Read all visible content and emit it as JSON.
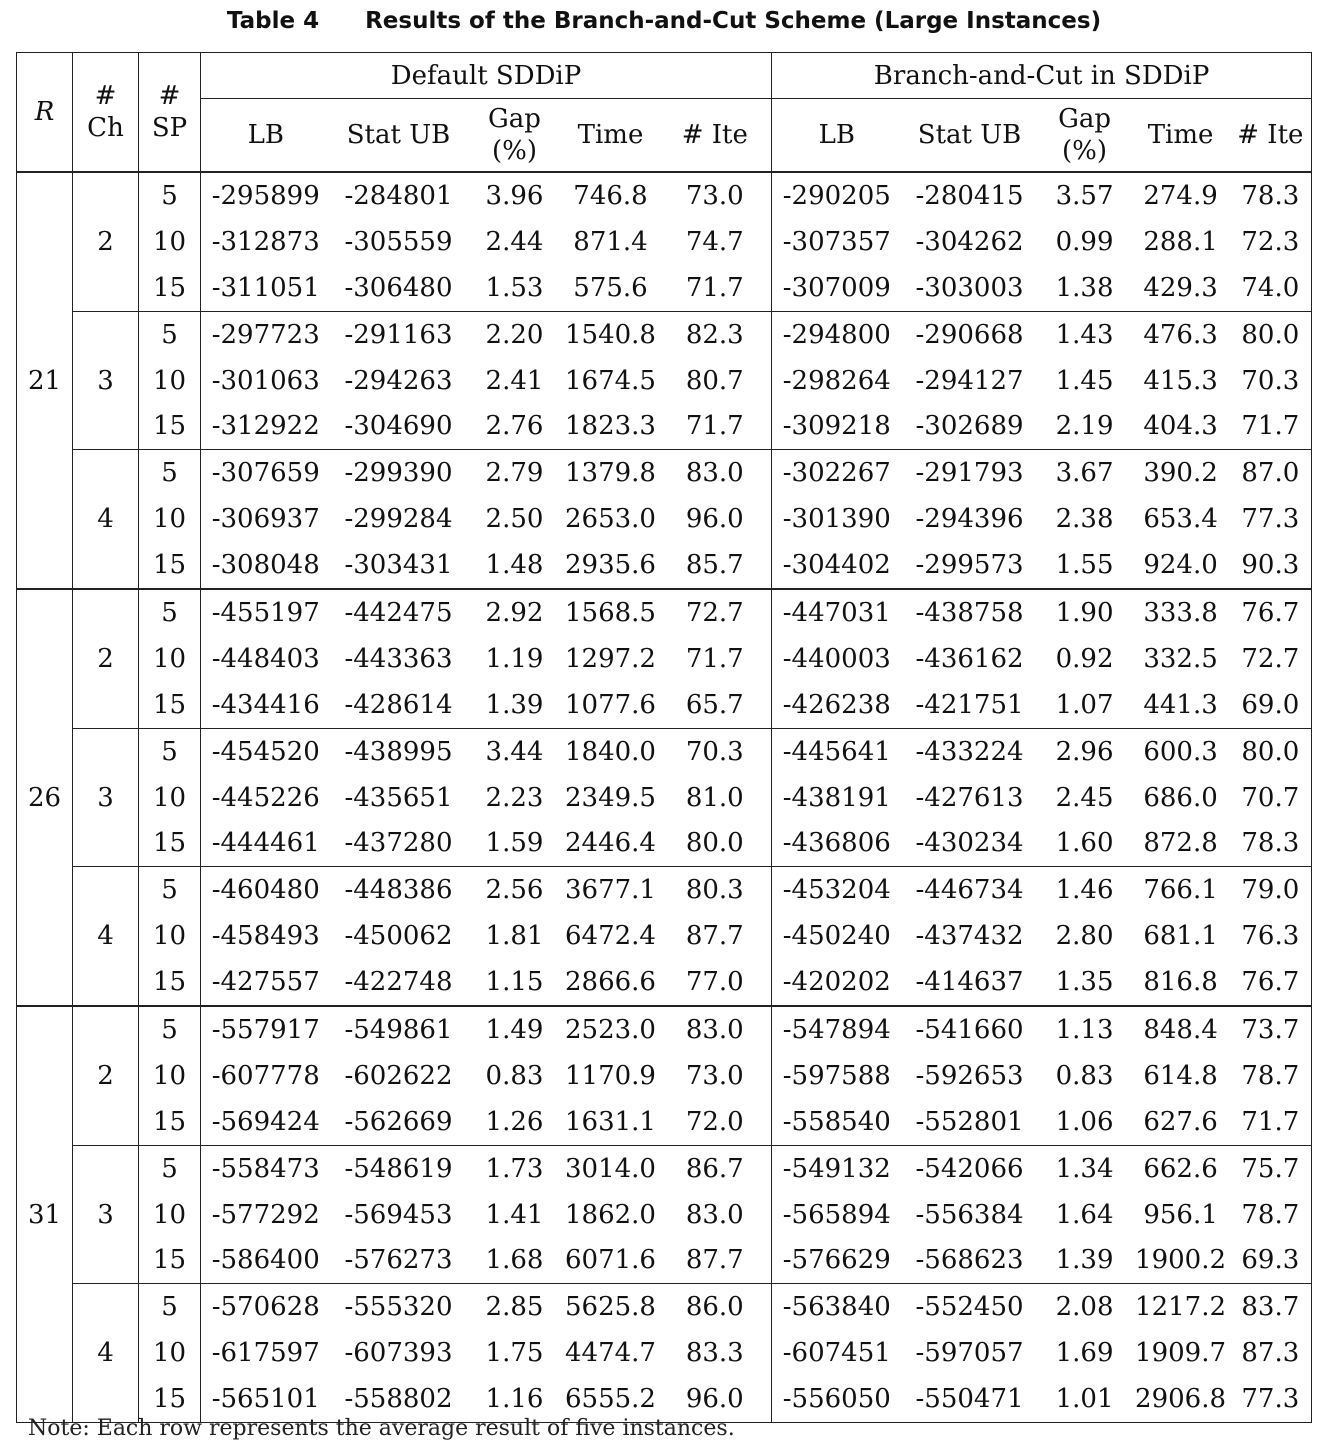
{
  "caption": {
    "label": "Table 4",
    "title": "Results of the Branch-and-Cut Scheme (Large Instances)"
  },
  "header": {
    "r": "R",
    "ch_hash": "#",
    "ch": "Ch",
    "sp_hash": "#",
    "sp": "SP",
    "group_default": "Default SDDiP",
    "group_bc": "Branch-and-Cut in SDDiP",
    "lb": "LB",
    "stat_ub": "Stat UB",
    "gap_line1": "Gap",
    "gap_line2": "(%)",
    "time": "Time",
    "ite": "# Ite"
  },
  "blocks": [
    {
      "r": "21",
      "groups": [
        {
          "ch": "2",
          "rows": [
            [
              "5",
              "-295899",
              "-284801",
              "3.96",
              "746.8",
              "73.0",
              "-290205",
              "-280415",
              "3.57",
              "274.9",
              "78.3"
            ],
            [
              "10",
              "-312873",
              "-305559",
              "2.44",
              "871.4",
              "74.7",
              "-307357",
              "-304262",
              "0.99",
              "288.1",
              "72.3"
            ],
            [
              "15",
              "-311051",
              "-306480",
              "1.53",
              "575.6",
              "71.7",
              "-307009",
              "-303003",
              "1.38",
              "429.3",
              "74.0"
            ]
          ]
        },
        {
          "ch": "3",
          "rows": [
            [
              "5",
              "-297723",
              "-291163",
              "2.20",
              "1540.8",
              "82.3",
              "-294800",
              "-290668",
              "1.43",
              "476.3",
              "80.0"
            ],
            [
              "10",
              "-301063",
              "-294263",
              "2.41",
              "1674.5",
              "80.7",
              "-298264",
              "-294127",
              "1.45",
              "415.3",
              "70.3"
            ],
            [
              "15",
              "-312922",
              "-304690",
              "2.76",
              "1823.3",
              "71.7",
              "-309218",
              "-302689",
              "2.19",
              "404.3",
              "71.7"
            ]
          ]
        },
        {
          "ch": "4",
          "rows": [
            [
              "5",
              "-307659",
              "-299390",
              "2.79",
              "1379.8",
              "83.0",
              "-302267",
              "-291793",
              "3.67",
              "390.2",
              "87.0"
            ],
            [
              "10",
              "-306937",
              "-299284",
              "2.50",
              "2653.0",
              "96.0",
              "-301390",
              "-294396",
              "2.38",
              "653.4",
              "77.3"
            ],
            [
              "15",
              "-308048",
              "-303431",
              "1.48",
              "2935.6",
              "85.7",
              "-304402",
              "-299573",
              "1.55",
              "924.0",
              "90.3"
            ]
          ]
        }
      ]
    },
    {
      "r": "26",
      "groups": [
        {
          "ch": "2",
          "rows": [
            [
              "5",
              "-455197",
              "-442475",
              "2.92",
              "1568.5",
              "72.7",
              "-447031",
              "-438758",
              "1.90",
              "333.8",
              "76.7"
            ],
            [
              "10",
              "-448403",
              "-443363",
              "1.19",
              "1297.2",
              "71.7",
              "-440003",
              "-436162",
              "0.92",
              "332.5",
              "72.7"
            ],
            [
              "15",
              "-434416",
              "-428614",
              "1.39",
              "1077.6",
              "65.7",
              "-426238",
              "-421751",
              "1.07",
              "441.3",
              "69.0"
            ]
          ]
        },
        {
          "ch": "3",
          "rows": [
            [
              "5",
              "-454520",
              "-438995",
              "3.44",
              "1840.0",
              "70.3",
              "-445641",
              "-433224",
              "2.96",
              "600.3",
              "80.0"
            ],
            [
              "10",
              "-445226",
              "-435651",
              "2.23",
              "2349.5",
              "81.0",
              "-438191",
              "-427613",
              "2.45",
              "686.0",
              "70.7"
            ],
            [
              "15",
              "-444461",
              "-437280",
              "1.59",
              "2446.4",
              "80.0",
              "-436806",
              "-430234",
              "1.60",
              "872.8",
              "78.3"
            ]
          ]
        },
        {
          "ch": "4",
          "rows": [
            [
              "5",
              "-460480",
              "-448386",
              "2.56",
              "3677.1",
              "80.3",
              "-453204",
              "-446734",
              "1.46",
              "766.1",
              "79.0"
            ],
            [
              "10",
              "-458493",
              "-450062",
              "1.81",
              "6472.4",
              "87.7",
              "-450240",
              "-437432",
              "2.80",
              "681.1",
              "76.3"
            ],
            [
              "15",
              "-427557",
              "-422748",
              "1.15",
              "2866.6",
              "77.0",
              "-420202",
              "-414637",
              "1.35",
              "816.8",
              "76.7"
            ]
          ]
        }
      ]
    },
    {
      "r": "31",
      "groups": [
        {
          "ch": "2",
          "rows": [
            [
              "5",
              "-557917",
              "-549861",
              "1.49",
              "2523.0",
              "83.0",
              "-547894",
              "-541660",
              "1.13",
              "848.4",
              "73.7"
            ],
            [
              "10",
              "-607778",
              "-602622",
              "0.83",
              "1170.9",
              "73.0",
              "-597588",
              "-592653",
              "0.83",
              "614.8",
              "78.7"
            ],
            [
              "15",
              "-569424",
              "-562669",
              "1.26",
              "1631.1",
              "72.0",
              "-558540",
              "-552801",
              "1.06",
              "627.6",
              "71.7"
            ]
          ]
        },
        {
          "ch": "3",
          "rows": [
            [
              "5",
              "-558473",
              "-548619",
              "1.73",
              "3014.0",
              "86.7",
              "-549132",
              "-542066",
              "1.34",
              "662.6",
              "75.7"
            ],
            [
              "10",
              "-577292",
              "-569453",
              "1.41",
              "1862.0",
              "83.0",
              "-565894",
              "-556384",
              "1.64",
              "956.1",
              "78.7"
            ],
            [
              "15",
              "-586400",
              "-576273",
              "1.68",
              "6071.6",
              "87.7",
              "-576629",
              "-568623",
              "1.39",
              "1900.2",
              "69.3"
            ]
          ]
        },
        {
          "ch": "4",
          "rows": [
            [
              "5",
              "-570628",
              "-555320",
              "2.85",
              "5625.8",
              "86.0",
              "-563840",
              "-552450",
              "2.08",
              "1217.2",
              "83.7"
            ],
            [
              "10",
              "-617597",
              "-607393",
              "1.75",
              "4474.7",
              "83.3",
              "-607451",
              "-597057",
              "1.69",
              "1909.7",
              "87.3"
            ],
            [
              "15",
              "-565101",
              "-558802",
              "1.16",
              "6555.2",
              "96.0",
              "-556050",
              "-550471",
              "1.01",
              "2906.8",
              "77.3"
            ]
          ]
        }
      ]
    }
  ],
  "note": "Note: Each row represents the average result of five instances."
}
